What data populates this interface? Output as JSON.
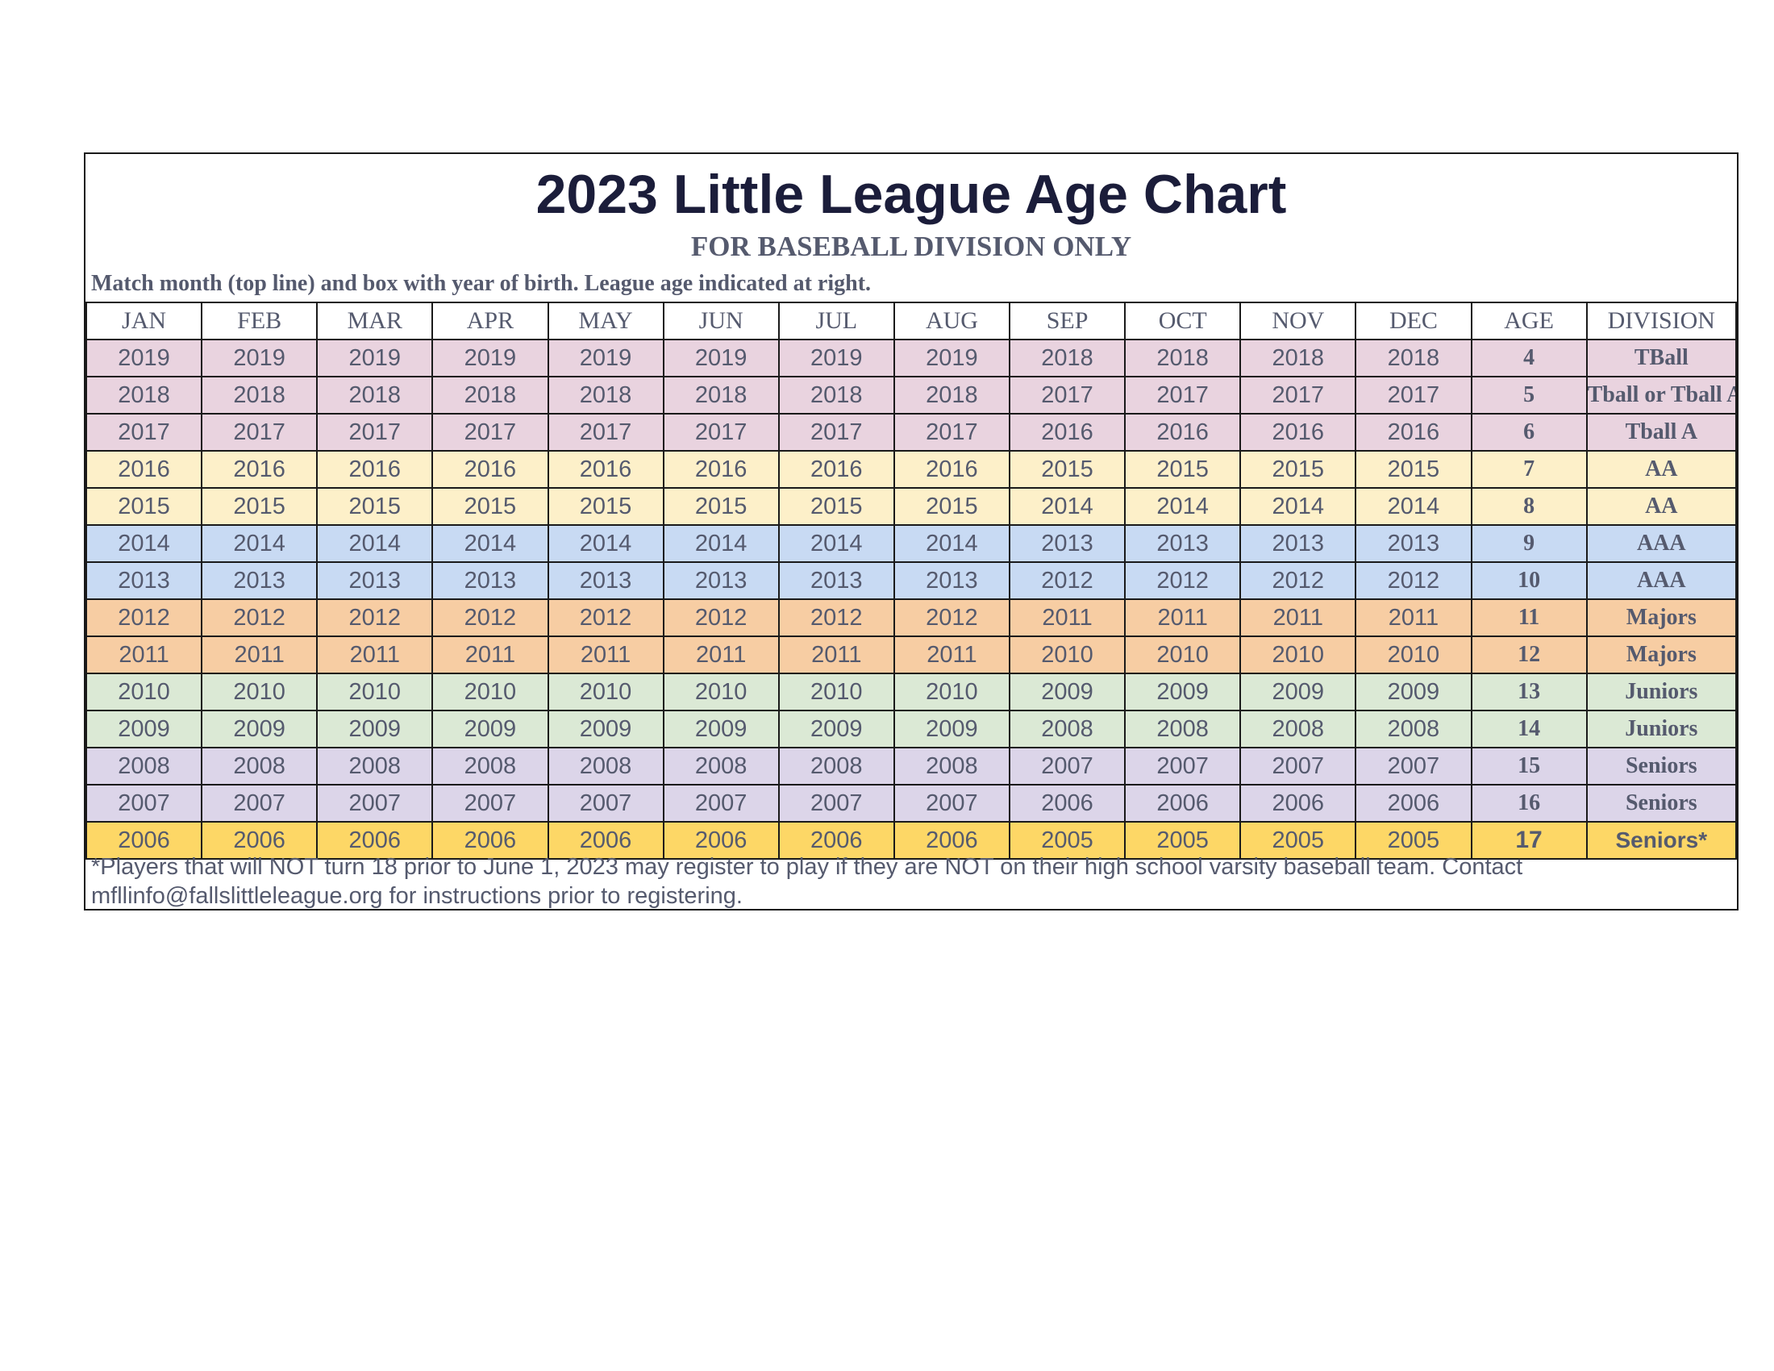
{
  "title": "2023 Little League Age Chart",
  "subtitle": "FOR BASEBALL DIVISION ONLY",
  "instructions": "Match month (top line) and box with year of birth. League age indicated at right.",
  "headers": [
    "JAN",
    "FEB",
    "MAR",
    "APR",
    "MAY",
    "JUN",
    "JUL",
    "AUG",
    "SEP",
    "OCT",
    "NOV",
    "DEC",
    "AGE",
    "DIVISION"
  ],
  "rows": [
    {
      "years": [
        "2019",
        "2019",
        "2019",
        "2019",
        "2019",
        "2019",
        "2019",
        "2019",
        "2018",
        "2018",
        "2018",
        "2018"
      ],
      "age": "4",
      "division": "TBall",
      "color": "#e9d3df"
    },
    {
      "years": [
        "2018",
        "2018",
        "2018",
        "2018",
        "2018",
        "2018",
        "2018",
        "2018",
        "2017",
        "2017",
        "2017",
        "2017"
      ],
      "age": "5",
      "division": "Tball or Tball A",
      "color": "#e9d3df"
    },
    {
      "years": [
        "2017",
        "2017",
        "2017",
        "2017",
        "2017",
        "2017",
        "2017",
        "2017",
        "2016",
        "2016",
        "2016",
        "2016"
      ],
      "age": "6",
      "division": "Tball A",
      "color": "#e9d3df"
    },
    {
      "years": [
        "2016",
        "2016",
        "2016",
        "2016",
        "2016",
        "2016",
        "2016",
        "2016",
        "2015",
        "2015",
        "2015",
        "2015"
      ],
      "age": "7",
      "division": "AA",
      "color": "#fdf0c9"
    },
    {
      "years": [
        "2015",
        "2015",
        "2015",
        "2015",
        "2015",
        "2015",
        "2015",
        "2015",
        "2014",
        "2014",
        "2014",
        "2014"
      ],
      "age": "8",
      "division": "AA",
      "color": "#fdf0c9"
    },
    {
      "years": [
        "2014",
        "2014",
        "2014",
        "2014",
        "2014",
        "2014",
        "2014",
        "2014",
        "2013",
        "2013",
        "2013",
        "2013"
      ],
      "age": "9",
      "division": "AAA",
      "color": "#c8daf3"
    },
    {
      "years": [
        "2013",
        "2013",
        "2013",
        "2013",
        "2013",
        "2013",
        "2013",
        "2013",
        "2012",
        "2012",
        "2012",
        "2012"
      ],
      "age": "10",
      "division": "AAA",
      "color": "#c8daf3"
    },
    {
      "years": [
        "2012",
        "2012",
        "2012",
        "2012",
        "2012",
        "2012",
        "2012",
        "2012",
        "2011",
        "2011",
        "2011",
        "2011"
      ],
      "age": "11",
      "division": "Majors",
      "color": "#f7cda3"
    },
    {
      "years": [
        "2011",
        "2011",
        "2011",
        "2011",
        "2011",
        "2011",
        "2011",
        "2011",
        "2010",
        "2010",
        "2010",
        "2010"
      ],
      "age": "12",
      "division": "Majors",
      "color": "#f7cda3"
    },
    {
      "years": [
        "2010",
        "2010",
        "2010",
        "2010",
        "2010",
        "2010",
        "2010",
        "2010",
        "2009",
        "2009",
        "2009",
        "2009"
      ],
      "age": "13",
      "division": "Juniors",
      "color": "#dbe9d5"
    },
    {
      "years": [
        "2009",
        "2009",
        "2009",
        "2009",
        "2009",
        "2009",
        "2009",
        "2009",
        "2008",
        "2008",
        "2008",
        "2008"
      ],
      "age": "14",
      "division": "Juniors",
      "color": "#dbe9d5"
    },
    {
      "years": [
        "2008",
        "2008",
        "2008",
        "2008",
        "2008",
        "2008",
        "2008",
        "2008",
        "2007",
        "2007",
        "2007",
        "2007"
      ],
      "age": "15",
      "division": "Seniors",
      "color": "#dcd5e9"
    },
    {
      "years": [
        "2007",
        "2007",
        "2007",
        "2007",
        "2007",
        "2007",
        "2007",
        "2007",
        "2006",
        "2006",
        "2006",
        "2006"
      ],
      "age": "16",
      "division": "Seniors",
      "color": "#dcd5e9"
    },
    {
      "years": [
        "2006",
        "2006",
        "2006",
        "2006",
        "2006",
        "2006",
        "2006",
        "2006",
        "2005",
        "2005",
        "2005",
        "2005"
      ],
      "age": "17",
      "division": "Seniors*",
      "color": "#fdd766"
    }
  ],
  "footnote": "*Players that will NOT turn 18 prior to June 1, 2023 may register to play if they are NOT on their high school varsity baseball team.  Contact mfllinfo@fallslittleleague.org for instructions prior to registering."
}
